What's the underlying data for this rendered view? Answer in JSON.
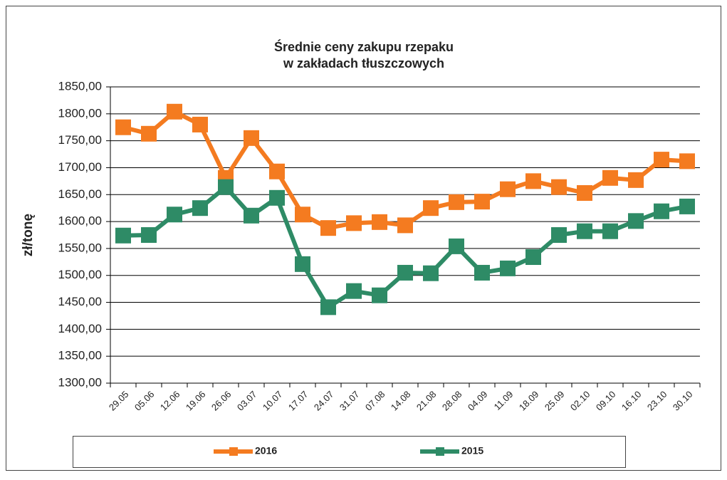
{
  "chart_data": {
    "type": "line",
    "title": [
      "Średnie ceny zakupu rzepaku",
      "w zakładach tłuszczowych"
    ],
    "y_label": "zł/tonę",
    "categories": [
      "29.05",
      "05.06",
      "12.06",
      "19.06",
      "26.06",
      "03.07",
      "10.07",
      "17.07",
      "24.07",
      "31.07",
      "07.08",
      "14.08",
      "21.08",
      "28.08",
      "04.09",
      "11.09",
      "18.09",
      "25.09",
      "02.10",
      "09.10",
      "16.10",
      "23.10",
      "30.10"
    ],
    "series": [
      {
        "name": "2016",
        "color": "#f47b20",
        "values": [
          1775,
          1763,
          1804,
          1780,
          1681,
          1755,
          1693,
          1613,
          1588,
          1597,
          1599,
          1593,
          1625,
          1636,
          1637,
          1660,
          1675,
          1664,
          1653,
          1681,
          1677,
          1715,
          1712
        ]
      },
      {
        "name": "2015",
        "color": "#2e8b66",
        "values": [
          1574,
          1575,
          1613,
          1625,
          1664,
          1611,
          1644,
          1521,
          1441,
          1471,
          1463,
          1505,
          1504,
          1554,
          1505,
          1513,
          1534,
          1575,
          1582,
          1582,
          1601,
          1619,
          1628
        ]
      }
    ],
    "ylim": [
      1300,
      1850
    ],
    "yticks": [
      {
        "value": 1300,
        "label": "1300,00"
      },
      {
        "value": 1350,
        "label": "1350,00"
      },
      {
        "value": 1400,
        "label": "1400,00"
      },
      {
        "value": 1450,
        "label": "1450,00"
      },
      {
        "value": 1500,
        "label": "1500,00"
      },
      {
        "value": 1550,
        "label": "1550,00"
      },
      {
        "value": 1600,
        "label": "1600,00"
      },
      {
        "value": 1650,
        "label": "1650,00"
      },
      {
        "value": 1700,
        "label": "1700,00"
      },
      {
        "value": 1750,
        "label": "1750,00"
      },
      {
        "value": 1800,
        "label": "1800,00"
      },
      {
        "value": 1850,
        "label": "1850,00"
      }
    ],
    "grid": true,
    "legend": "bottom"
  }
}
